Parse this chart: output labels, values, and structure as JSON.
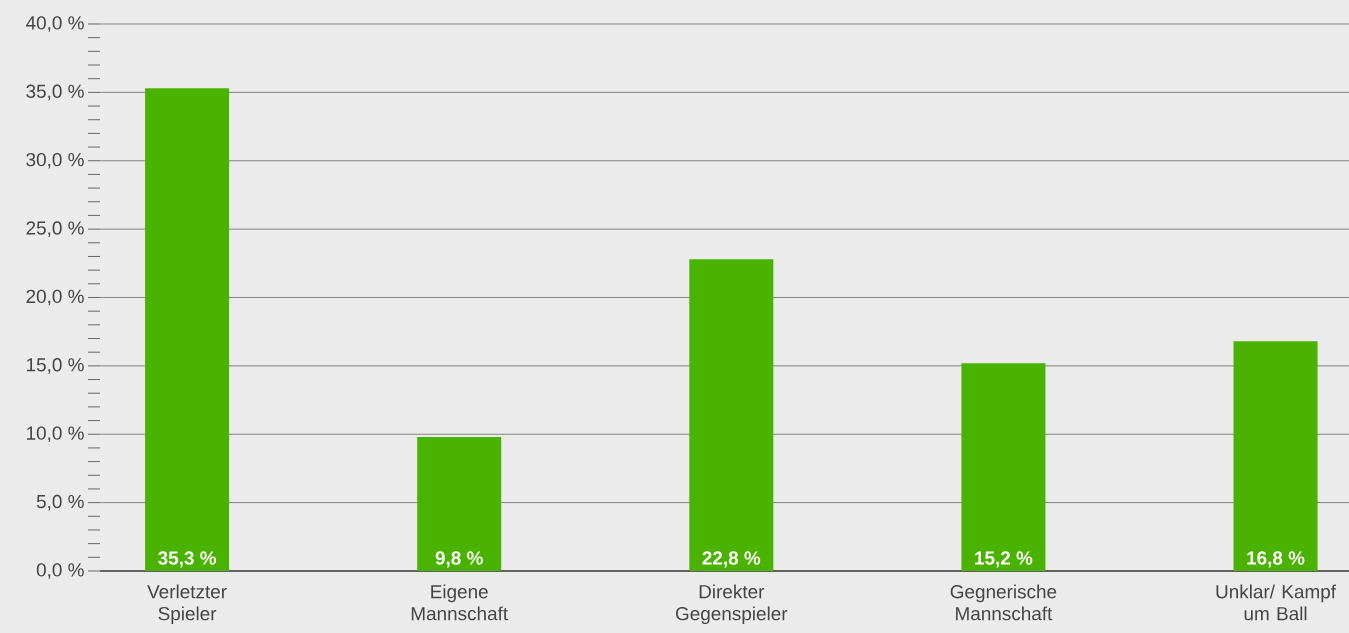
{
  "chart_data": {
    "type": "bar",
    "categories": [
      "Verletzter Spieler",
      "Eigene Mannschaft",
      "Direkter Gegenspieler",
      "Gegnerische Mannschaft",
      "Unklar/ Kampf um Ball"
    ],
    "values": [
      35.3,
      9.8,
      22.8,
      15.2,
      16.8
    ],
    "value_labels": [
      "35,3 %",
      "9,8 %",
      "22,8 %",
      "15,2 %",
      "16,8 %"
    ],
    "color": "#4ab200",
    "ylim": [
      0,
      40
    ],
    "yticks": [
      {
        "value": 0,
        "label": "0,0 %"
      },
      {
        "value": 5,
        "label": "5,0 %"
      },
      {
        "value": 10,
        "label": "10,0 %"
      },
      {
        "value": 15,
        "label": "15,0 %"
      },
      {
        "value": 20,
        "label": "20,0 %"
      },
      {
        "value": 25,
        "label": "25,0 %"
      },
      {
        "value": 30,
        "label": "30,0 %"
      },
      {
        "value": 35,
        "label": "35,0 %"
      },
      {
        "value": 40,
        "label": "40,0 %"
      }
    ],
    "grid": "y"
  }
}
